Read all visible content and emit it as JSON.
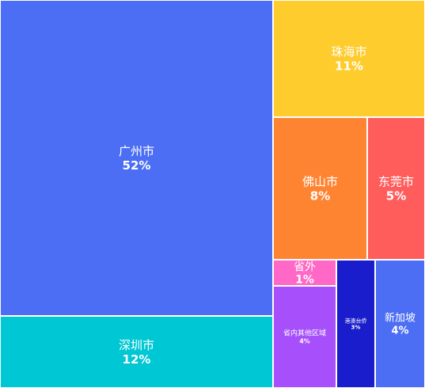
{
  "chart_data": {
    "type": "treemap",
    "unit": "%",
    "items": [
      {
        "name": "广州市",
        "value": 52,
        "label": "52%",
        "color": "#4c6ef5"
      },
      {
        "name": "深圳市",
        "value": 12,
        "label": "12%",
        "color": "#00c7d4"
      },
      {
        "name": "珠海市",
        "value": 11,
        "label": "11%",
        "color": "#ffcc2e"
      },
      {
        "name": "佛山市",
        "value": 8,
        "label": "8%",
        "color": "#ff8431"
      },
      {
        "name": "东莞市",
        "value": 5,
        "label": "5%",
        "color": "#ff5c5c"
      },
      {
        "name": "省外",
        "value": 1,
        "label": "1%",
        "color": "#ff68c6"
      },
      {
        "name": "省内其他区域",
        "value": 4,
        "label": "4%",
        "color": "#a64ffb"
      },
      {
        "name": "港澳台侨",
        "value": 3,
        "label": "3%",
        "color": "#1a1dcc"
      },
      {
        "name": "新加坡",
        "value": 4,
        "label": "4%",
        "color": "#4c6ef5"
      }
    ]
  }
}
